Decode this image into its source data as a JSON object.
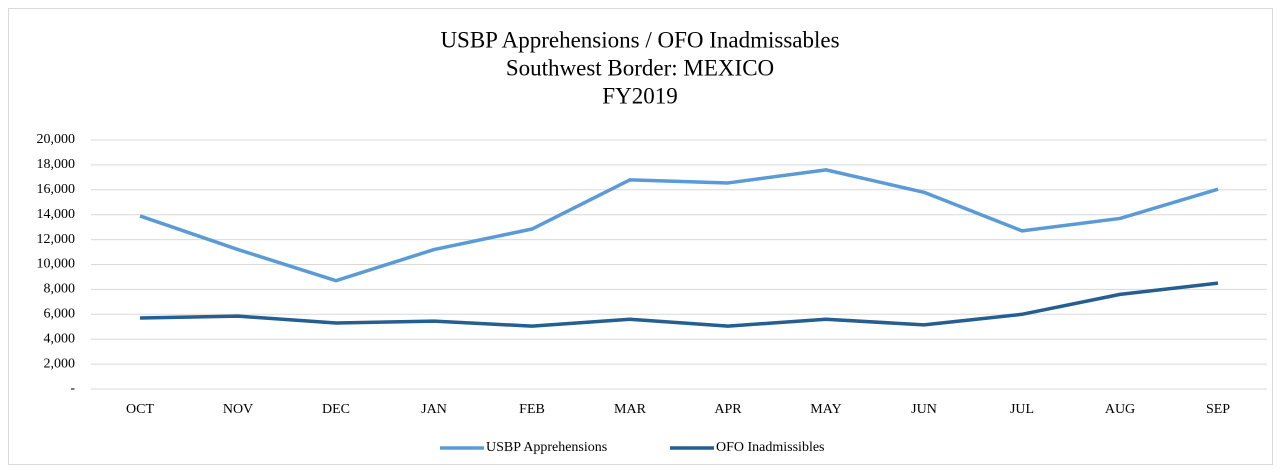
{
  "chart_data": {
    "type": "line",
    "title": [
      "USBP Apprehensions / OFO Inadmissables",
      "Southwest Border: MEXICO",
      "FY2019"
    ],
    "categories": [
      "OCT",
      "NOV",
      "DEC",
      "JAN",
      "FEB",
      "MAR",
      "APR",
      "MAY",
      "JUN",
      "JUL",
      "AUG",
      "SEP"
    ],
    "series": [
      {
        "name": "USBP Apprehensions",
        "color": "#5b9bd5",
        "values": [
          13900,
          11200,
          8700,
          11200,
          12850,
          16800,
          16550,
          17600,
          15800,
          12700,
          13700,
          16050
        ]
      },
      {
        "name": "OFO Inadmissibles",
        "color": "#255e91",
        "values": [
          5700,
          5850,
          5300,
          5450,
          5050,
          5600,
          5050,
          5600,
          5150,
          6000,
          7600,
          8500
        ]
      }
    ],
    "ylim": [
      0,
      20000
    ],
    "yticks": [
      {
        "value": 0,
        "label": "-"
      },
      {
        "value": 2000,
        "label": "2,000"
      },
      {
        "value": 4000,
        "label": "4,000"
      },
      {
        "value": 6000,
        "label": "6,000"
      },
      {
        "value": 8000,
        "label": "8,000"
      },
      {
        "value": 10000,
        "label": "10,000"
      },
      {
        "value": 12000,
        "label": "12,000"
      },
      {
        "value": 14000,
        "label": "14,000"
      },
      {
        "value": 16000,
        "label": "16,000"
      },
      {
        "value": 18000,
        "label": "18,000"
      },
      {
        "value": 20000,
        "label": "20,000"
      }
    ],
    "grid": true,
    "legend": "bottom"
  }
}
